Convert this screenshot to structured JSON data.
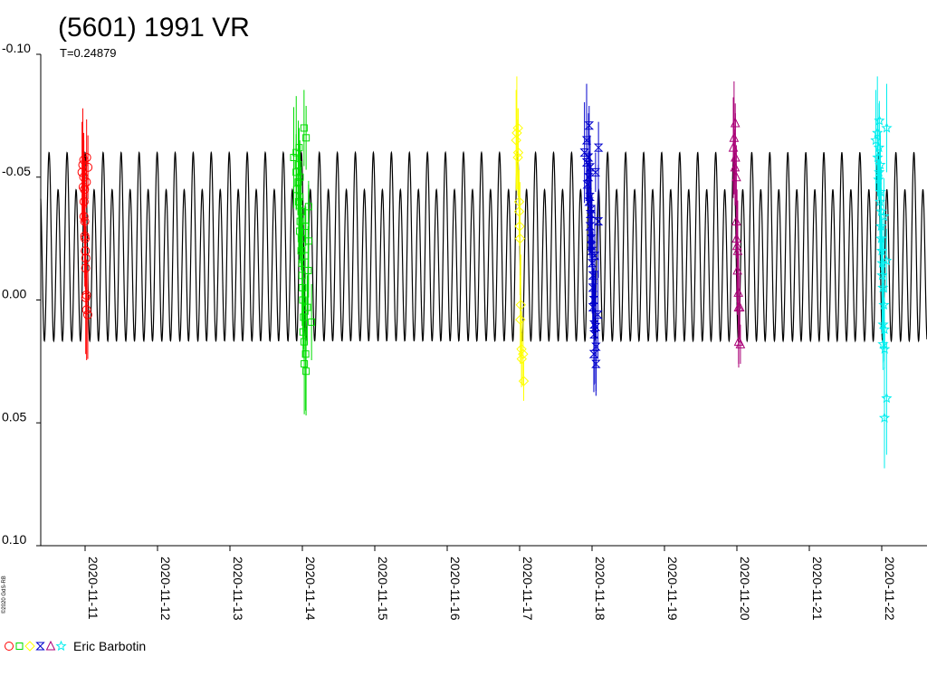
{
  "chart_data": {
    "type": "scatter",
    "title": "(5601) 1991 VR",
    "subtitle": "T=0.24879",
    "ylim": [
      -0.1,
      0.1
    ],
    "y_inverted": true,
    "yticks": [
      "-0.10",
      "-0.05",
      "0.00",
      "0.05",
      "0.10"
    ],
    "xticks": [
      "2020-11-11",
      "2020-11-12",
      "2020-11-13",
      "2020-11-14",
      "2020-11-15",
      "2020-11-16",
      "2020-11-17",
      "2020-11-18",
      "2020-11-19",
      "2020-11-20",
      "2020-11-21",
      "2020-11-22"
    ],
    "x_start_day": "2020-11-11",
    "period_days": 0.24879,
    "model_curve": {
      "amplitude_min": -0.06,
      "amplitude_max": 0.024,
      "color": "#000000"
    },
    "series": [
      {
        "color": "#ff0000",
        "marker": "circle",
        "day_offset": 0.0,
        "spread": 0.07,
        "values": [
          -0.057,
          -0.055,
          -0.052,
          -0.05,
          -0.046,
          -0.045,
          -0.04,
          -0.034,
          -0.032,
          -0.026,
          -0.025,
          -0.02,
          -0.017,
          -0.013,
          -0.002,
          -0.001,
          0.004,
          0.006,
          -0.058,
          -0.054,
          -0.048
        ]
      },
      {
        "color": "#00dd00",
        "marker": "square",
        "day_offset": 3.0,
        "spread": 0.18,
        "values": [
          -0.062,
          -0.06,
          -0.058,
          -0.055,
          -0.052,
          -0.05,
          -0.048,
          -0.045,
          -0.042,
          -0.04,
          -0.036,
          -0.032,
          -0.028,
          -0.025,
          -0.02,
          -0.015,
          -0.01,
          -0.005,
          0.0,
          0.007,
          0.013,
          0.017,
          0.022,
          0.026,
          0.029,
          -0.07,
          -0.066,
          -0.038,
          -0.03,
          -0.024,
          -0.018,
          -0.012,
          0.009,
          0.003
        ]
      },
      {
        "color": "#ffff00",
        "marker": "diamond",
        "day_offset": 6.0,
        "spread": 0.09,
        "values": [
          -0.07,
          -0.068,
          -0.065,
          -0.06,
          -0.058,
          -0.04,
          -0.036,
          -0.03,
          -0.025,
          0.002,
          0.008,
          0.02,
          0.022,
          0.024,
          0.033
        ]
      },
      {
        "color": "#0000cc",
        "marker": "hourglass",
        "day_offset": 7.0,
        "spread": 0.16,
        "values": [
          -0.071,
          -0.065,
          -0.06,
          -0.058,
          -0.056,
          -0.054,
          -0.05,
          -0.047,
          -0.042,
          -0.04,
          -0.037,
          -0.035,
          -0.03,
          -0.025,
          -0.022,
          -0.02,
          -0.015,
          -0.01,
          -0.005,
          0.0,
          0.003,
          0.01,
          0.011,
          0.014,
          0.019,
          0.022,
          0.026,
          -0.062,
          -0.052,
          -0.032,
          -0.018,
          0.006
        ]
      },
      {
        "color": "#aa0077",
        "marker": "triangle",
        "day_offset": 9.0,
        "spread": 0.09,
        "values": [
          -0.072,
          -0.066,
          -0.062,
          -0.058,
          -0.054,
          -0.05,
          -0.032,
          -0.025,
          -0.022,
          -0.02,
          -0.012,
          -0.003,
          0.003,
          0.017,
          0.018,
          0.003
        ]
      },
      {
        "color": "#00eeee",
        "marker": "star",
        "day_offset": 11.0,
        "spread": 0.13,
        "values": [
          -0.073,
          -0.068,
          -0.065,
          -0.062,
          -0.058,
          -0.055,
          -0.052,
          -0.049,
          -0.044,
          -0.04,
          -0.036,
          -0.03,
          -0.025,
          -0.02,
          -0.015,
          -0.01,
          -0.005,
          0.002,
          0.01,
          0.012,
          0.018,
          0.02,
          0.04,
          0.048,
          -0.07,
          -0.034,
          -0.016
        ]
      }
    ],
    "legend": {
      "name": "Eric Barbotin",
      "placement": "bottom-left"
    },
    "credit": "©2020 GdS-RB"
  }
}
